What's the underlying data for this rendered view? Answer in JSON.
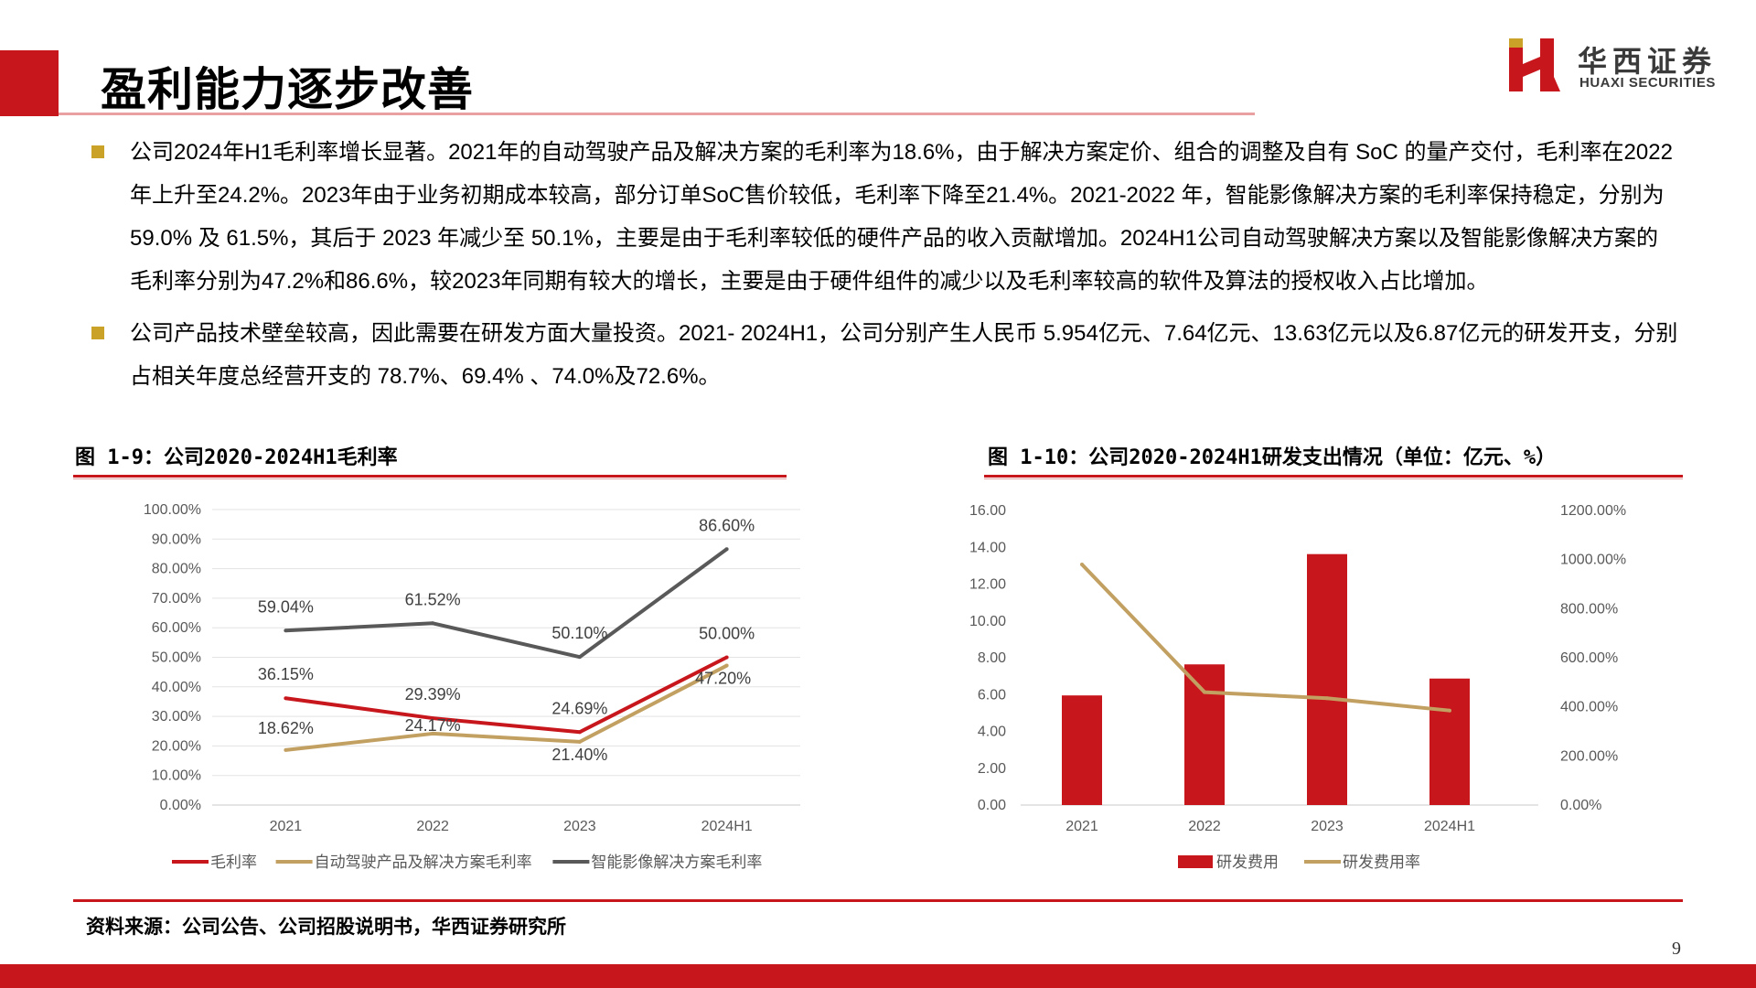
{
  "header": {
    "title": "盈利能力逐步改善",
    "logo_cn": "华西证券",
    "logo_en": "HUAXI SECURITIES"
  },
  "bullets": [
    "公司2024年H1毛利率增长显著。2021年的自动驾驶产品及解决方案的毛利率为18.6%，由于解决方案定价、组合的调整及自有 SoC 的量产交付，毛利率在2022年上升至24.2%。2023年由于业务初期成本较高，部分订单SoC售价较低，毛利率下降至21.4%。2021-2022 年，智能影像解决方案的毛利率保持稳定，分别为 59.0% 及 61.5%，其后于 2023 年减少至 50.1%，主要是由于毛利率较低的硬件产品的收入贡献增加。2024H1公司自动驾驶解决方案以及智能影像解决方案的毛利率分别为47.2%和86.6%，较2023年同期有较大的增长，主要是由于硬件组件的减少以及毛利率较高的软件及算法的授权收入占比增加。",
    "公司产品技术壁垒较高，因此需要在研发方面大量投资。2021- 2024H1，公司分别产生人民币 5.954亿元、7.64亿元、13.63亿元以及6.87亿元的研发开支，分别占相关年度总经营开支的 78.7%、69.4% 、74.0%及72.6%。"
  ],
  "figures": {
    "left_title": "图 1-9：公司2020-2024H1毛利率",
    "right_title": "图 1-10：公司2020-2024H1研发支出情况（单位：亿元、%）"
  },
  "chart_data": [
    {
      "type": "line",
      "categories": [
        "2021",
        "2022",
        "2023",
        "2024H1"
      ],
      "ylim": [
        0,
        100
      ],
      "yticks": [
        "0.00%",
        "10.00%",
        "20.00%",
        "30.00%",
        "40.00%",
        "50.00%",
        "60.00%",
        "70.00%",
        "80.00%",
        "90.00%",
        "100.00%"
      ],
      "series": [
        {
          "name": "毛利率",
          "color": "#c8161d",
          "values": [
            36.15,
            29.39,
            24.69,
            50.0
          ],
          "labels": [
            "36.15%",
            "29.39%",
            "24.69%",
            "50.00%"
          ]
        },
        {
          "name": "自动驾驶产品及解决方案毛利率",
          "color": "#c2a062",
          "values": [
            18.62,
            24.17,
            21.4,
            47.2
          ],
          "labels": [
            "18.62%",
            "24.17%",
            "21.40%",
            "47.20%"
          ]
        },
        {
          "name": "智能影像解决方案毛利率",
          "color": "#595959",
          "values": [
            59.04,
            61.52,
            50.1,
            86.6
          ],
          "labels": [
            "59.04%",
            "61.52%",
            "50.10%",
            "86.60%"
          ]
        }
      ]
    },
    {
      "type": "bar",
      "categories": [
        "2021",
        "2022",
        "2023",
        "2024H1"
      ],
      "ylim": [
        0,
        16
      ],
      "yticks": [
        "0.00",
        "2.00",
        "4.00",
        "6.00",
        "8.00",
        "10.00",
        "12.00",
        "14.00",
        "16.00"
      ],
      "y2lim": [
        0,
        1200
      ],
      "y2ticks": [
        "0.00%",
        "200.00%",
        "400.00%",
        "600.00%",
        "800.00%",
        "1000.00%",
        "1200.00%"
      ],
      "series": [
        {
          "name": "研发费用",
          "type": "bar",
          "axis": "left",
          "color": "#c8161d",
          "values": [
            5.954,
            7.64,
            13.63,
            6.87
          ]
        },
        {
          "name": "研发费用率",
          "type": "line",
          "axis": "right",
          "color": "#c2a062",
          "values": [
            980,
            460,
            435,
            385
          ]
        }
      ]
    }
  ],
  "source": "资料来源：公司公告、公司招股说明书，华西证券研究所",
  "page_number": "9"
}
